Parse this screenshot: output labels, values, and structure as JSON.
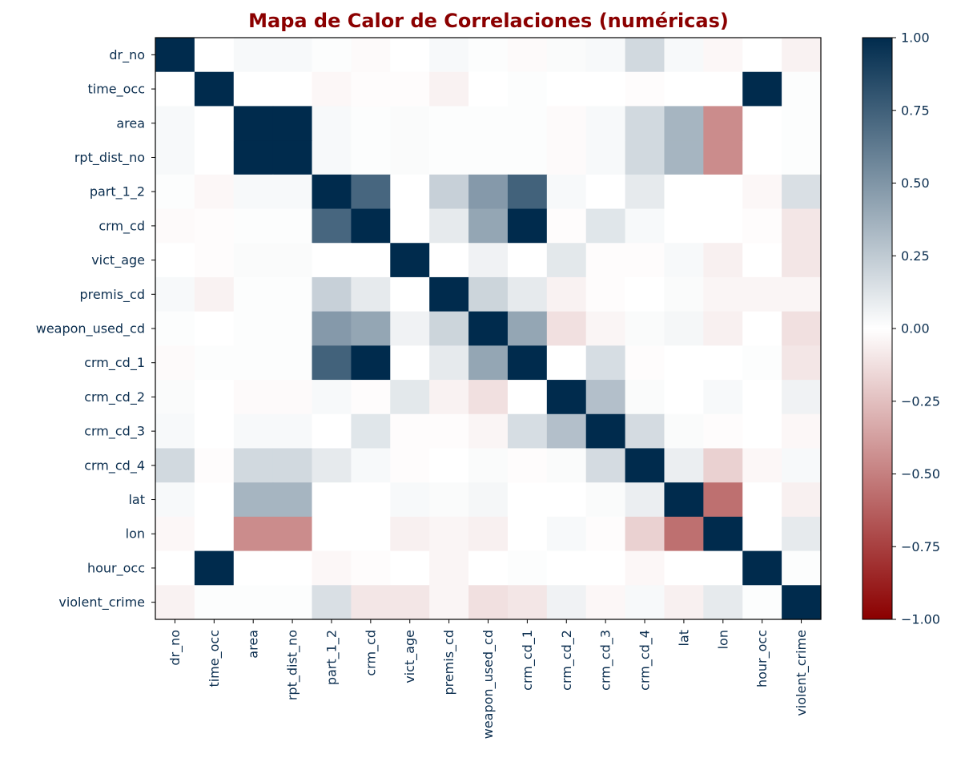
{
  "chart_data": {
    "type": "heatmap",
    "title": "Mapa de Calor de Correlaciones (numéricas)",
    "labels": [
      "dr_no",
      "time_occ",
      "area",
      "rpt_dist_no",
      "part_1_2",
      "crm_cd",
      "vict_age",
      "premis_cd",
      "weapon_used_cd",
      "crm_cd_1",
      "crm_cd_2",
      "crm_cd_3",
      "crm_cd_4",
      "lat",
      "lon",
      "hour_occ",
      "violent_crime"
    ],
    "matrix": [
      [
        1.0,
        0.0,
        0.03,
        0.03,
        0.01,
        -0.02,
        0.0,
        0.03,
        0.01,
        -0.02,
        0.02,
        0.03,
        0.18,
        0.03,
        -0.03,
        0.0,
        -0.05
      ],
      [
        0.0,
        1.0,
        0.0,
        0.0,
        -0.03,
        -0.01,
        -0.01,
        -0.05,
        0.0,
        0.01,
        0.0,
        0.0,
        -0.01,
        0.0,
        0.0,
        1.0,
        0.01
      ],
      [
        0.03,
        0.0,
        1.0,
        1.0,
        0.03,
        0.01,
        0.02,
        0.01,
        0.01,
        0.01,
        -0.02,
        0.03,
        0.18,
        0.35,
        -0.45,
        0.0,
        0.01
      ],
      [
        0.03,
        0.0,
        1.0,
        1.0,
        0.03,
        0.01,
        0.02,
        0.01,
        0.01,
        0.01,
        -0.02,
        0.03,
        0.18,
        0.35,
        -0.45,
        0.0,
        0.01
      ],
      [
        0.01,
        -0.03,
        0.03,
        0.03,
        1.0,
        0.72,
        0.0,
        0.22,
        0.48,
        0.74,
        0.03,
        0.0,
        0.1,
        0.0,
        0.0,
        -0.03,
        0.15
      ],
      [
        -0.02,
        -0.01,
        0.01,
        0.01,
        0.72,
        1.0,
        0.0,
        0.1,
        0.42,
        1.0,
        -0.01,
        0.12,
        0.03,
        0.0,
        0.0,
        -0.01,
        -0.1
      ],
      [
        0.0,
        -0.01,
        0.02,
        0.02,
        0.0,
        0.0,
        1.0,
        0.0,
        0.06,
        0.0,
        0.11,
        -0.01,
        -0.01,
        0.03,
        -0.06,
        0.0,
        -0.1
      ],
      [
        0.03,
        -0.05,
        0.01,
        0.01,
        0.22,
        0.1,
        0.0,
        1.0,
        0.2,
        0.1,
        -0.05,
        -0.01,
        0.0,
        0.02,
        -0.04,
        -0.04,
        -0.04
      ],
      [
        0.01,
        0.0,
        0.01,
        0.01,
        0.48,
        0.42,
        0.06,
        0.2,
        1.0,
        0.42,
        -0.12,
        -0.04,
        0.02,
        0.04,
        -0.06,
        0.0,
        -0.12
      ],
      [
        -0.02,
        0.01,
        0.01,
        0.01,
        0.74,
        1.0,
        0.0,
        0.1,
        0.42,
        1.0,
        0.0,
        0.16,
        -0.01,
        0.0,
        0.0,
        0.01,
        -0.1
      ],
      [
        0.02,
        0.0,
        -0.02,
        -0.02,
        0.03,
        -0.01,
        0.11,
        -0.05,
        -0.12,
        0.0,
        1.0,
        0.3,
        0.02,
        0.0,
        0.03,
        0.0,
        0.06
      ],
      [
        0.03,
        0.0,
        0.03,
        0.03,
        0.0,
        0.12,
        -0.01,
        -0.01,
        -0.04,
        0.16,
        0.3,
        1.0,
        0.17,
        0.02,
        -0.01,
        0.0,
        -0.03
      ],
      [
        0.18,
        -0.01,
        0.18,
        0.18,
        0.1,
        0.03,
        -0.01,
        0.0,
        0.02,
        -0.01,
        0.02,
        0.17,
        1.0,
        0.08,
        -0.18,
        -0.03,
        0.03
      ],
      [
        0.03,
        0.0,
        0.35,
        0.35,
        0.0,
        0.0,
        0.03,
        0.02,
        0.04,
        0.0,
        0.0,
        0.02,
        0.08,
        1.0,
        -0.56,
        0.0,
        -0.06
      ],
      [
        -0.03,
        0.0,
        -0.45,
        -0.45,
        0.0,
        0.0,
        -0.06,
        -0.04,
        -0.06,
        0.0,
        0.03,
        -0.01,
        -0.18,
        -0.56,
        1.0,
        0.0,
        0.1
      ],
      [
        0.0,
        1.0,
        0.0,
        0.0,
        -0.03,
        -0.01,
        0.0,
        -0.04,
        0.0,
        0.01,
        0.0,
        0.0,
        -0.03,
        0.0,
        0.0,
        1.0,
        0.01
      ],
      [
        -0.05,
        0.01,
        0.01,
        0.01,
        0.15,
        -0.1,
        -0.1,
        -0.04,
        -0.12,
        -0.1,
        0.06,
        -0.03,
        0.03,
        -0.06,
        0.1,
        0.01,
        1.0
      ]
    ],
    "vmin": -1.0,
    "vmax": 1.0,
    "colorbar_ticks": [
      "1.00",
      "0.75",
      "0.50",
      "0.25",
      "0.00",
      "−0.25",
      "−0.50",
      "−0.75",
      "−1.00"
    ],
    "colorbar_tick_values": [
      1.0,
      0.75,
      0.5,
      0.25,
      0.0,
      -0.25,
      -0.5,
      -0.75,
      -1.0
    ],
    "colormap": [
      "#8b0000",
      "#ffffff",
      "#002b4d"
    ],
    "xlabel": "",
    "ylabel": "",
    "grid": false
  }
}
